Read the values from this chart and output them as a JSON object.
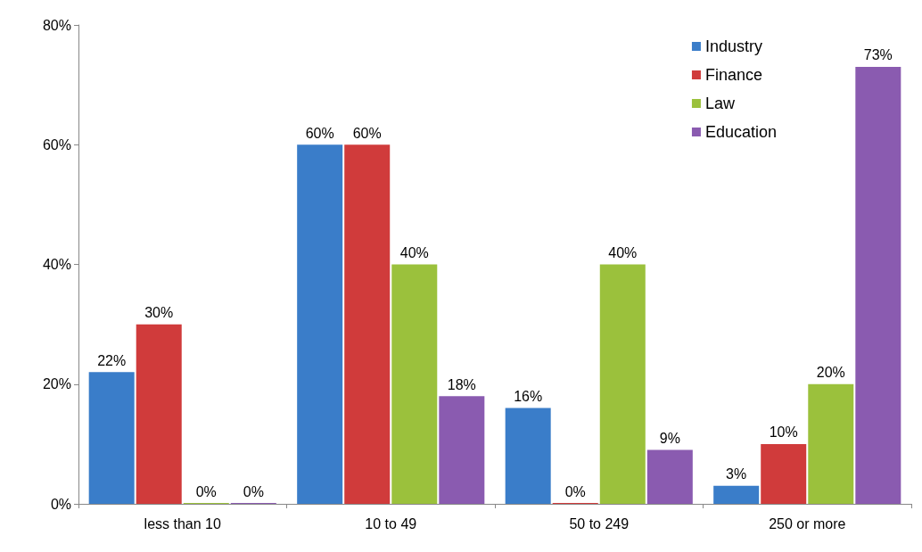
{
  "chart_data": {
    "type": "bar",
    "categories": [
      "less than 10",
      "10 to 49",
      "50 to 249",
      "250 or more"
    ],
    "series": [
      {
        "name": "Industry",
        "color": "#3a7dc9",
        "values": [
          22,
          60,
          16,
          3
        ],
        "value_labels": [
          "22%",
          "60%",
          "16%",
          "3%"
        ]
      },
      {
        "name": "Finance",
        "color": "#d03b3b",
        "values": [
          30,
          60,
          0,
          10
        ],
        "value_labels": [
          "30%",
          "60%",
          "0%",
          "10%"
        ]
      },
      {
        "name": "Law",
        "color": "#9bc13c",
        "values": [
          0,
          40,
          40,
          20
        ],
        "value_labels": [
          "0%",
          "40%",
          "40%",
          "20%"
        ]
      },
      {
        "name": "Education",
        "color": "#8a5bb0",
        "values": [
          0,
          18,
          9,
          73
        ],
        "value_labels": [
          "0%",
          "18%",
          "9%",
          "73%"
        ]
      }
    ],
    "ylim": [
      0,
      80
    ],
    "yticks": [
      {
        "value": 0,
        "label": "0%"
      },
      {
        "value": 20,
        "label": "20%"
      },
      {
        "value": 40,
        "label": "40%"
      },
      {
        "value": 60,
        "label": "60%"
      },
      {
        "value": 80,
        "label": "80%"
      }
    ],
    "grid": false,
    "legend": "top right"
  }
}
